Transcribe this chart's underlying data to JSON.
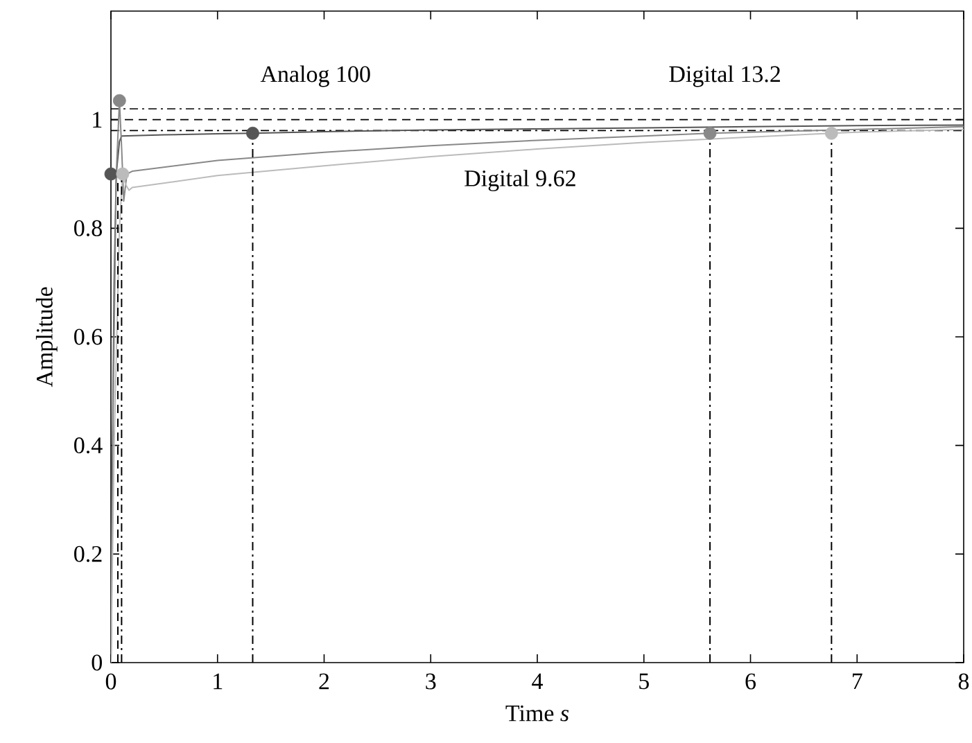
{
  "chart_data": {
    "type": "line",
    "xlabel": "Time *s*",
    "ylabel": "Amplitude",
    "xlim": [
      0,
      8
    ],
    "ylim": [
      0,
      1.2
    ],
    "xticks": [
      0,
      1,
      2,
      3,
      4,
      5,
      6,
      7,
      8
    ],
    "yticks": [
      0,
      0.2,
      0.4,
      0.6,
      0.8,
      1
    ],
    "series": [
      {
        "color": "#555555",
        "x": [
          0,
          0.01,
          0.03,
          0.05,
          0.08,
          0.1,
          0.5,
          1,
          1.33,
          2,
          3,
          4,
          5,
          6,
          7,
          8
        ],
        "values": [
          0,
          0.3,
          0.7,
          0.9,
          0.96,
          0.97,
          0.972,
          0.974,
          0.975,
          0.978,
          0.981,
          0.983,
          0.985,
          0.987,
          0.989,
          0.99
        ]
      },
      {
        "color": "#888888",
        "x": [
          0,
          0.02,
          0.05,
          0.08,
          0.1,
          0.12,
          0.15,
          0.2,
          1,
          2,
          3,
          4,
          5,
          5.62,
          6,
          7,
          8
        ],
        "values": [
          0,
          0.45,
          0.9,
          1.035,
          0.95,
          0.85,
          0.9,
          0.905,
          0.925,
          0.94,
          0.952,
          0.962,
          0.97,
          0.975,
          0.977,
          0.982,
          0.987
        ]
      },
      {
        "color": "#bbbbbb",
        "x": [
          0,
          0.03,
          0.08,
          0.11,
          0.14,
          0.17,
          0.2,
          1,
          2,
          3,
          4,
          5,
          6,
          6.76,
          7,
          8
        ],
        "values": [
          0,
          0.4,
          0.8,
          0.9,
          0.88,
          0.87,
          0.875,
          0.897,
          0.915,
          0.932,
          0.946,
          0.958,
          0.968,
          0.975,
          0.977,
          0.982
        ]
      },
      {
        "type": "line",
        "color": "#000000",
        "line_style": "dashed",
        "x": [
          0.065,
          0.065
        ],
        "values": [
          0,
          0.9
        ]
      },
      {
        "type": "line",
        "color": "#000000",
        "line_style": "dashdot",
        "x": [
          0.1,
          0.1
        ],
        "values": [
          0,
          0.9
        ]
      },
      {
        "type": "line",
        "color": "#000000",
        "line_style": "dashdot",
        "x": [
          1.33,
          1.33
        ],
        "values": [
          0,
          0.975
        ]
      },
      {
        "type": "line",
        "color": "#000000",
        "line_style": "dashdot",
        "x": [
          5.62,
          5.62
        ],
        "values": [
          0,
          0.975
        ]
      },
      {
        "type": "line",
        "color": "#000000",
        "line_style": "dashdot",
        "x": [
          6.76,
          6.76
        ],
        "values": [
          0,
          0.975
        ]
      },
      {
        "type": "scatter",
        "color": "#555555",
        "marker": "circle",
        "x": [
          0,
          1.33
        ],
        "values": [
          0.9,
          0.975
        ]
      },
      {
        "type": "scatter",
        "color": "#888888",
        "marker": "circle",
        "x": [
          0.08,
          5.62
        ],
        "values": [
          1.035,
          0.975
        ]
      },
      {
        "type": "scatter",
        "color": "#bbbbbb",
        "marker": "circle",
        "x": [
          0.11,
          6.76
        ],
        "values": [
          0.9,
          0.975
        ]
      }
    ],
    "ref_lines": [
      {
        "axis": "y",
        "value": 1.02,
        "color": "#000000",
        "line_style": "dashdot"
      },
      {
        "axis": "y",
        "value": 1.0,
        "color": "#000000",
        "line_style": "dashed"
      },
      {
        "axis": "y",
        "value": 0.98,
        "color": "#000000",
        "line_style": "dashdot"
      }
    ],
    "annotations": [
      "Analog 100",
      "Digital 13.2",
      "Digital 9.62"
    ]
  }
}
